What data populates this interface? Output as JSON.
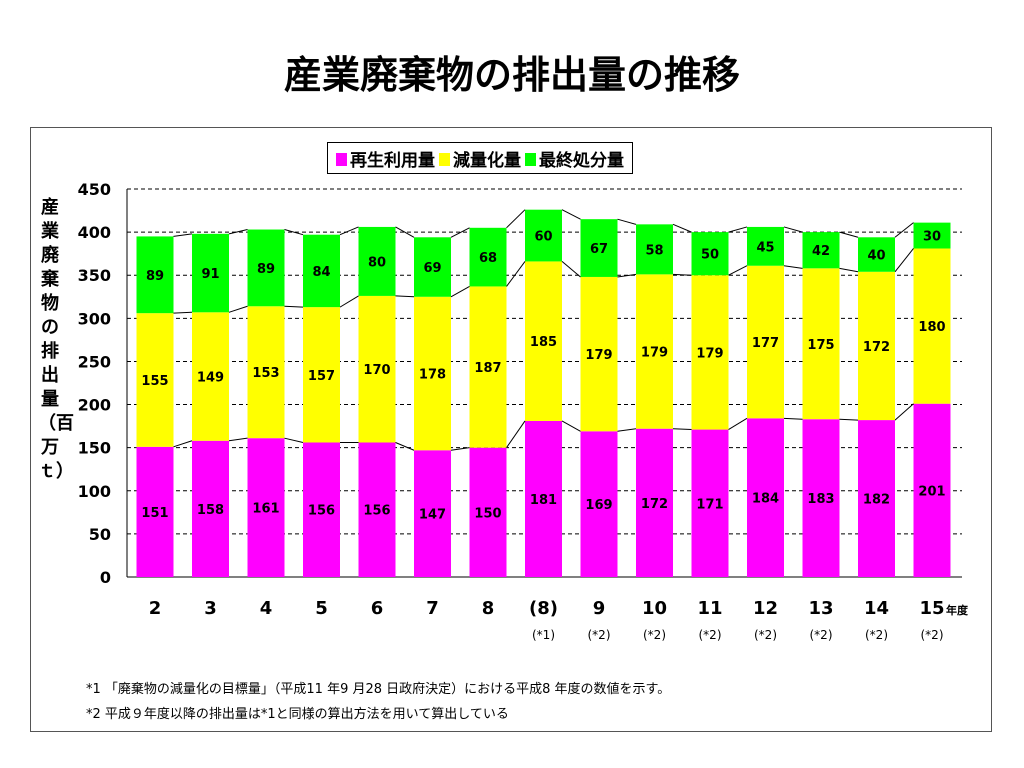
{
  "title": "産業廃棄物の排出量の推移",
  "chart_data": {
    "type": "bar",
    "stacked": true,
    "title": "産業廃棄物の排出量の推移",
    "ylabel": "産業廃棄物の排出量（百万ｔ）",
    "xlabel": "年度",
    "ylim": [
      0,
      450
    ],
    "yticks": [
      0,
      50,
      100,
      150,
      200,
      250,
      300,
      350,
      400,
      450
    ],
    "grid": true,
    "legend_position": "top",
    "categories": [
      "2",
      "3",
      "4",
      "5",
      "6",
      "7",
      "8",
      "(8)",
      "9",
      "10",
      "11",
      "12",
      "13",
      "14",
      "15"
    ],
    "category_notes": [
      "",
      "",
      "",
      "",
      "",
      "",
      "",
      "(*1)",
      "(*2)",
      "(*2)",
      "(*2)",
      "(*2)",
      "(*2)",
      "(*2)",
      "(*2)"
    ],
    "x_unit_label": "年度",
    "series": [
      {
        "name": "再生利用量",
        "color": "#ff00ff",
        "values": [
          151,
          158,
          161,
          156,
          156,
          147,
          150,
          181,
          169,
          172,
          171,
          184,
          183,
          182,
          201
        ]
      },
      {
        "name": "減量化量",
        "color": "#ffff00",
        "values": [
          155,
          149,
          153,
          157,
          170,
          178,
          187,
          185,
          179,
          179,
          179,
          177,
          175,
          172,
          180
        ]
      },
      {
        "name": "最終処分量",
        "color": "#00ff00",
        "values": [
          89,
          91,
          89,
          84,
          80,
          69,
          68,
          60,
          67,
          58,
          50,
          45,
          42,
          40,
          30
        ]
      }
    ]
  },
  "footnotes": [
    "*1 「廃棄物の減量化の目標量」（平成11 年9 月28 日政府決定）における平成8 年度の数値を示す。",
    "*2 平成９年度以降の排出量は*1と同様の算出方法を用いて算出している"
  ]
}
